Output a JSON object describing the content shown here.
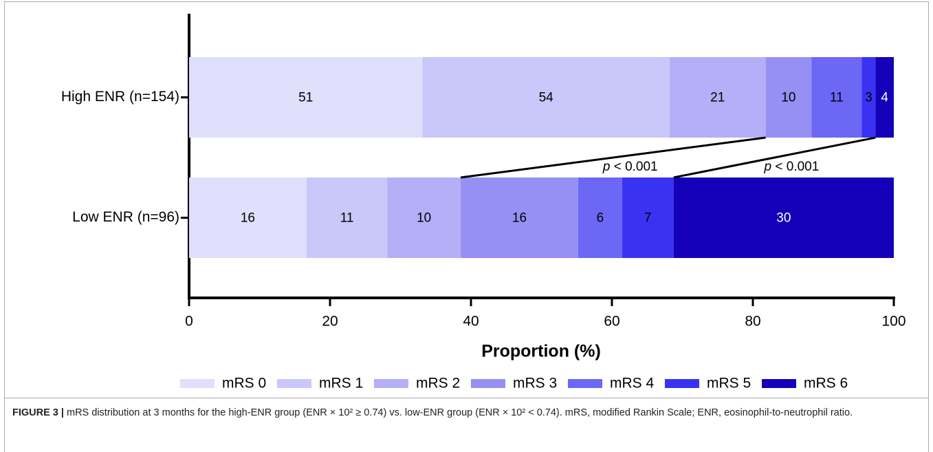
{
  "chart_data": {
    "type": "bar",
    "orientation": "horizontal",
    "stacking": "percent",
    "categories": [
      "High ENR (n=154)",
      "Low ENR (n=96)"
    ],
    "series": [
      {
        "name": "mRS 0",
        "color": "#e0dffc",
        "label_color": "#000000",
        "values": [
          51,
          16
        ]
      },
      {
        "name": "mRS 1",
        "color": "#cac7fa",
        "label_color": "#000000",
        "values": [
          54,
          11
        ]
      },
      {
        "name": "mRS 2",
        "color": "#b4aff7",
        "label_color": "#000000",
        "values": [
          21,
          10
        ]
      },
      {
        "name": "mRS 3",
        "color": "#9690f4",
        "label_color": "#000000",
        "values": [
          10,
          16
        ]
      },
      {
        "name": "mRS 4",
        "color": "#6c67f5",
        "label_color": "#000000",
        "values": [
          11,
          6
        ]
      },
      {
        "name": "mRS 5",
        "color": "#3a32f2",
        "label_color": "#000000",
        "values": [
          3,
          7
        ]
      },
      {
        "name": "mRS 6",
        "color": "#1400b8",
        "label_color": "#ffffff",
        "values": [
          4,
          30
        ]
      }
    ],
    "xlabel": "Proportion (%)",
    "xlim": [
      0,
      100
    ],
    "xticks": [
      0,
      20,
      40,
      60,
      80,
      100
    ],
    "annotations": [
      {
        "text": "p < 0.001",
        "series_index": 3
      },
      {
        "text": "p < 0.001",
        "series_index": 6
      }
    ],
    "legend": "bottom"
  },
  "caption": {
    "label": "FIGURE 3 |",
    "text": "mRS distribution at 3 months for the high-ENR group (ENR × 10² ≥ 0.74) vs. low-ENR group (ENR × 10² < 0.74). mRS, modified Rankin Scale; ENR, eosinophil-to-neutrophil ratio."
  }
}
